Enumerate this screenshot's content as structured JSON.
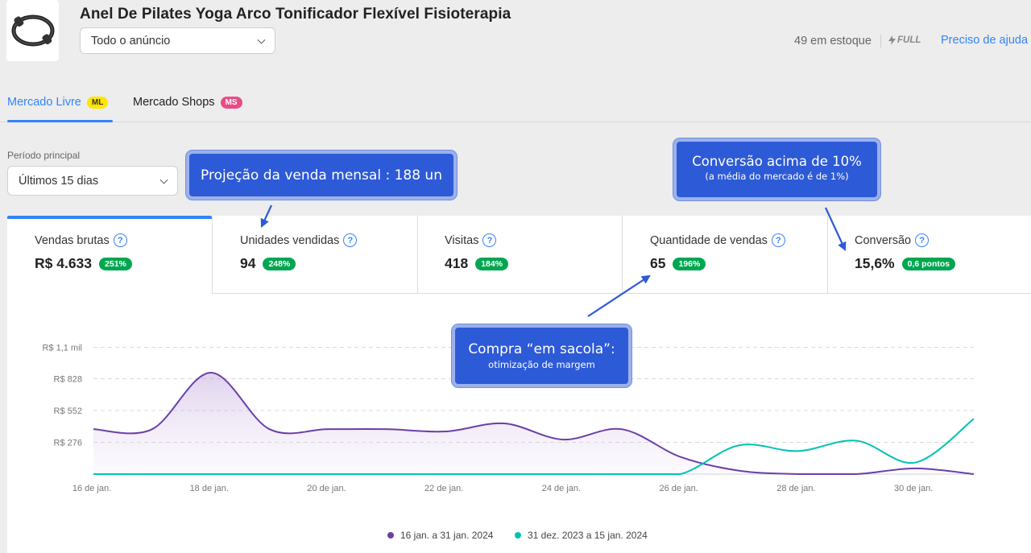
{
  "product": {
    "title": "Anel De Pilates Yoga Arco Tonificador Flexível Fisioterapia",
    "scope_select": "Todo o anúncio",
    "stock": "49 em estoque",
    "full_label": "FULL",
    "help_link": "Preciso de ajuda"
  },
  "tabs": [
    {
      "label": "Mercado Livre",
      "badge": "ML"
    },
    {
      "label": "Mercado Shops",
      "badge": "MS"
    }
  ],
  "period": {
    "label": "Período principal",
    "value": "Últimos 15 dias"
  },
  "callouts": {
    "projection": "Projeção da venda mensal : 188 un",
    "conversion_title": "Conversão acima de 10%",
    "conversion_sub": "(a média do mercado é de 1%)",
    "bag_title": "Compra “em sacola”:",
    "bag_sub": "otimização de margem"
  },
  "metrics": [
    {
      "label": "Vendas brutas",
      "value": "R$ 4.633",
      "badge": "251%"
    },
    {
      "label": "Unidades vendidas",
      "value": "94",
      "badge": "248%"
    },
    {
      "label": "Visitas",
      "value": "418",
      "badge": "184%"
    },
    {
      "label": "Quantidade de vendas",
      "value": "65",
      "badge": "196%"
    },
    {
      "label": "Conversão",
      "value": "15,6%",
      "badge": "0,6 pontos"
    }
  ],
  "colors": {
    "accent": "#3483fa",
    "badge_green": "#00a650",
    "series_current": "#6a3fa8",
    "series_previous": "#00c2b3",
    "callout": "#2d5ad6"
  },
  "chart_data": {
    "type": "line",
    "y_tick_labels": [
      "R$ 1,1 mil",
      "R$ 828",
      "R$ 552",
      "R$ 276"
    ],
    "y_ticks": [
      1100,
      828,
      552,
      276
    ],
    "ylim": [
      0,
      1104
    ],
    "x_tick_labels": [
      "16 de jan.",
      "18 de jan.",
      "20 de jan.",
      "22 de jan.",
      "24 de jan.",
      "26 de jan.",
      "28 de jan.",
      "30 de jan."
    ],
    "grid": true,
    "legend_position": "bottom",
    "series": [
      {
        "name": "16 jan. a 31 jan. 2024",
        "color": "#6a3fa8",
        "area": true,
        "values": [
          390,
          390,
          880,
          390,
          390,
          390,
          370,
          440,
          300,
          390,
          150,
          30,
          0,
          0,
          50,
          0
        ]
      },
      {
        "name": "31 dez. 2023 a 15 jan. 2024",
        "color": "#00c2b3",
        "area": false,
        "values": [
          0,
          0,
          0,
          0,
          0,
          0,
          0,
          0,
          0,
          0,
          0,
          250,
          200,
          290,
          100,
          480
        ]
      }
    ]
  }
}
